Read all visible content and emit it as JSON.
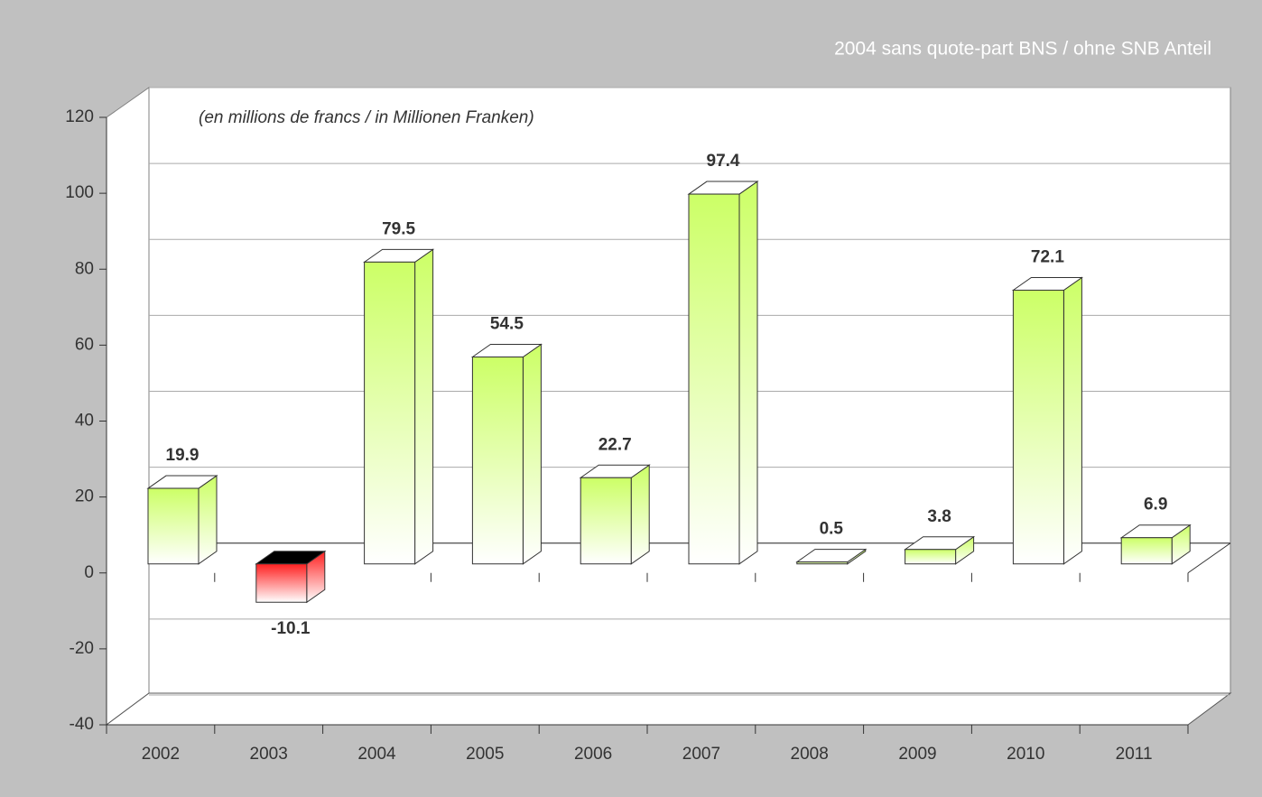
{
  "chart_data": {
    "type": "bar3d",
    "title": "2004 sans quote-part BNS / ohne SNB Anteil",
    "subtitle": "(en millions de francs / in Millionen Franken)",
    "categories": [
      "2002",
      "2003",
      "2004",
      "2005",
      "2006",
      "2007",
      "2008",
      "2009",
      "2010",
      "2011"
    ],
    "values": [
      19.9,
      -10.1,
      79.5,
      54.5,
      22.7,
      97.4,
      0.5,
      3.8,
      72.1,
      6.9
    ],
    "color": "#ccff66",
    "negative_color": "#ff2020",
    "ylim": [
      -40,
      120
    ],
    "yticks": [
      -40,
      -20,
      0,
      20,
      40,
      60,
      80,
      100,
      120
    ],
    "grid": true
  }
}
